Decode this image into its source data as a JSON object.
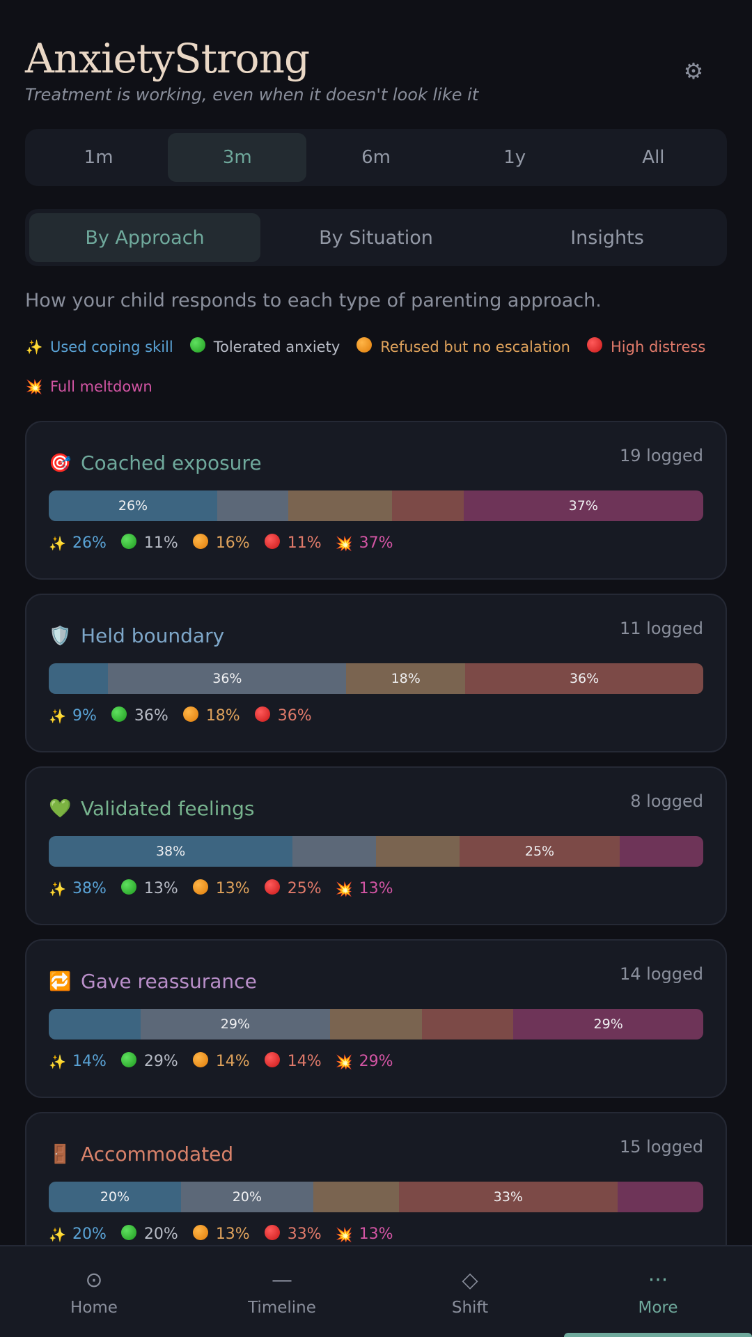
{
  "header": {
    "title": "AnxietyStrong",
    "subtitle": "Treatment is working, even when it doesn't look like it",
    "settings_icon": "gear-icon"
  },
  "range_tabs": [
    {
      "label": "1m",
      "active": false
    },
    {
      "label": "3m",
      "active": true
    },
    {
      "label": "6m",
      "active": false
    },
    {
      "label": "1y",
      "active": false
    },
    {
      "label": "All",
      "active": false
    }
  ],
  "view_tabs": [
    {
      "label": "By Approach",
      "active": true
    },
    {
      "label": "By Situation",
      "active": false
    },
    {
      "label": "Insights",
      "active": false
    }
  ],
  "description": "How your child responds to each type of parenting approach.",
  "legend": [
    {
      "emoji": "✨",
      "label": "Used coping skill"
    },
    {
      "emoji": "🟢",
      "label": "Tolerated anxiety"
    },
    {
      "emoji": "🟠",
      "label": "Refused but no escalation"
    },
    {
      "emoji": "🔴",
      "label": "High distress"
    },
    {
      "emoji": "💥",
      "label": "Full meltdown"
    }
  ],
  "colors": {
    "accent": "#6fa99c",
    "coping": "#5aa3d6",
    "tolerated": "#b8bcc6",
    "refused": "#e0a35c",
    "high": "#e07a6a",
    "meltdown": "#d355a4"
  },
  "approaches": [
    {
      "icon": "🎯",
      "title": "Coached exposure",
      "title_color": "#6fa99c",
      "count": "19 logged",
      "percents": [
        26,
        11,
        16,
        11,
        37
      ],
      "bar_labels": [
        "26%",
        "",
        "",
        "",
        "37%"
      ],
      "stats": [
        "26%",
        "11%",
        "16%",
        "11%",
        "37%"
      ]
    },
    {
      "icon": "🛡️",
      "title": "Held boundary",
      "title_color": "#7ea7c9",
      "count": "11 logged",
      "percents": [
        9,
        36,
        18,
        36,
        0
      ],
      "bar_labels": [
        "",
        "36%",
        "18%",
        "36%",
        ""
      ],
      "stats": [
        "9%",
        "36%",
        "18%",
        "36%",
        ""
      ]
    },
    {
      "icon": "💚",
      "title": "Validated feelings",
      "title_color": "#77b38e",
      "count": "8 logged",
      "percents": [
        38,
        13,
        13,
        25,
        13
      ],
      "bar_labels": [
        "38%",
        "",
        "",
        "25%",
        ""
      ],
      "stats": [
        "38%",
        "13%",
        "13%",
        "25%",
        "13%"
      ]
    },
    {
      "icon": "🔁",
      "title": "Gave reassurance",
      "title_color": "#b98fc9",
      "count": "14 logged",
      "percents": [
        14,
        29,
        14,
        14,
        29
      ],
      "bar_labels": [
        "",
        "29%",
        "",
        "",
        "29%"
      ],
      "stats": [
        "14%",
        "29%",
        "14%",
        "14%",
        "29%"
      ]
    },
    {
      "icon": "🚪",
      "title": "Accommodated",
      "title_color": "#d9826a",
      "count": "15 logged",
      "percents": [
        20,
        20,
        13,
        33,
        13
      ],
      "bar_labels": [
        "20%",
        "20%",
        "",
        "33%",
        ""
      ],
      "stats": [
        "20%",
        "20%",
        "13%",
        "33%",
        "13%"
      ]
    }
  ],
  "nav": [
    {
      "label": "Home",
      "icon": "home-icon",
      "glyph": "⊙",
      "active": false
    },
    {
      "label": "Timeline",
      "icon": "timeline-icon",
      "glyph": "—",
      "active": false
    },
    {
      "label": "Shift",
      "icon": "diamond-icon",
      "glyph": "◇",
      "active": false
    },
    {
      "label": "More",
      "icon": "more-icon",
      "glyph": "···",
      "active": true
    }
  ]
}
